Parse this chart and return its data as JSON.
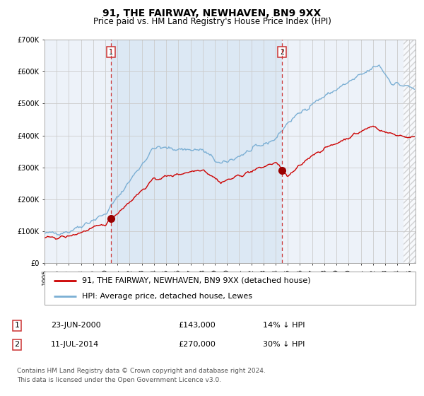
{
  "title": "91, THE FAIRWAY, NEWHAVEN, BN9 9XX",
  "subtitle": "Price paid vs. HM Land Registry's House Price Index (HPI)",
  "hpi_label": "HPI: Average price, detached house, Lewes",
  "property_label": "91, THE FAIRWAY, NEWHAVEN, BN9 9XX (detached house)",
  "footer1": "Contains HM Land Registry data © Crown copyright and database right 2024.",
  "footer2": "This data is licensed under the Open Government Licence v3.0.",
  "sale1_date": "23-JUN-2000",
  "sale1_price": "£143,000",
  "sale1_pct": "14% ↓ HPI",
  "sale2_date": "11-JUL-2014",
  "sale2_price": "£270,000",
  "sale2_pct": "30% ↓ HPI",
  "hpi_color": "#7bafd4",
  "property_color": "#cc0000",
  "sale_marker_color": "#990000",
  "vline_color": "#cc3333",
  "span_color": "#dce8f4",
  "background_plot": "#edf2f9",
  "grid_color": "#cccccc",
  "ylim": [
    0,
    700000
  ],
  "yticks": [
    0,
    100000,
    200000,
    300000,
    400000,
    500000,
    600000,
    700000
  ],
  "ytick_labels": [
    "£0",
    "£100K",
    "£200K",
    "£300K",
    "£400K",
    "£500K",
    "£600K",
    "£700K"
  ],
  "xlim_start": 1995.0,
  "xlim_end": 2025.5,
  "sale1_x": 2000.47,
  "sale2_x": 2014.52,
  "hatch_start": 2024.5,
  "title_fontsize": 10,
  "subtitle_fontsize": 8.5,
  "tick_fontsize": 7,
  "legend_fontsize": 8,
  "table_fontsize": 8,
  "footer_fontsize": 6.5
}
